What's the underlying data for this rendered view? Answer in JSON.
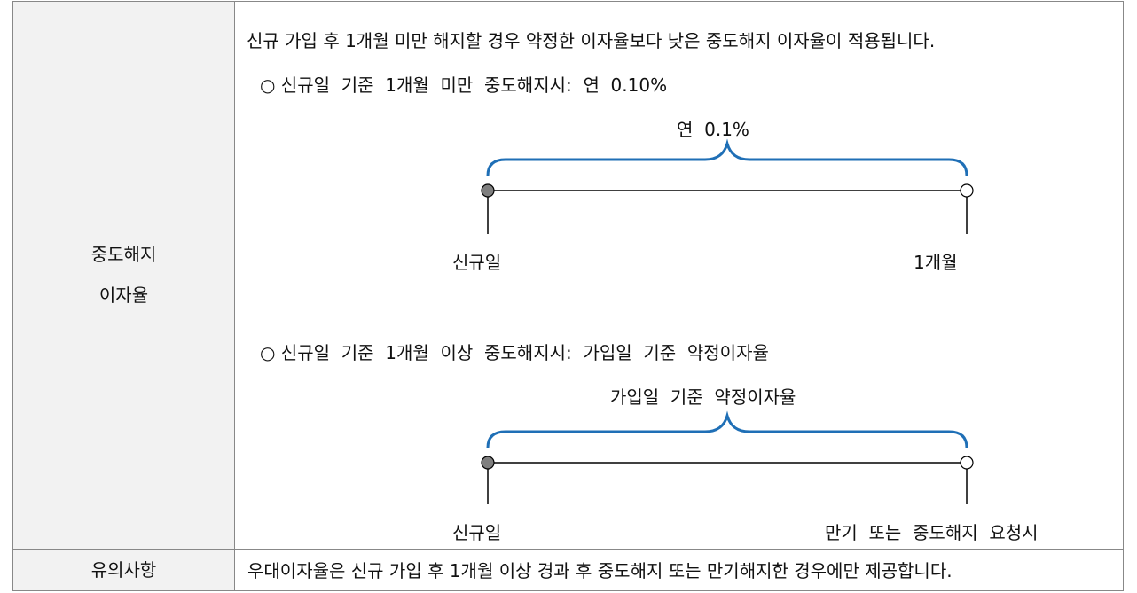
{
  "row1": {
    "label_line1": "중도해지",
    "label_line2": "이자율",
    "intro": "신규 가입 후 1개월 미만 해지할 경우 약정한 이자율보다 낮은 중도해지 이자율이 적용됩니다.",
    "case1": {
      "heading": "○ 신규일  기준  1개월  미만  중도해지시:  연  0.10%",
      "brace_label": "연  0.1%",
      "start_label": "신규일",
      "end_label": "1개월"
    },
    "case2": {
      "heading": "○ 신규일  기준  1개월  이상  중도해지시:  가입일  기준  약정이자율",
      "brace_label": "가입일  기준  약정이자율",
      "start_label": "신규일",
      "end_label": "만기  또는  중도해지  요청시"
    }
  },
  "row2": {
    "label": "유의사항",
    "text": "우대이자율은 신규 가입 후 1개월 이상 경과 후 중도해지 또는 만기해지한 경우에만 제공합니다."
  },
  "colors": {
    "brace": "#1f6fb6",
    "dot_start": "#7f7f7f",
    "line": "#000000",
    "label_bg": "#f2f2f2"
  }
}
